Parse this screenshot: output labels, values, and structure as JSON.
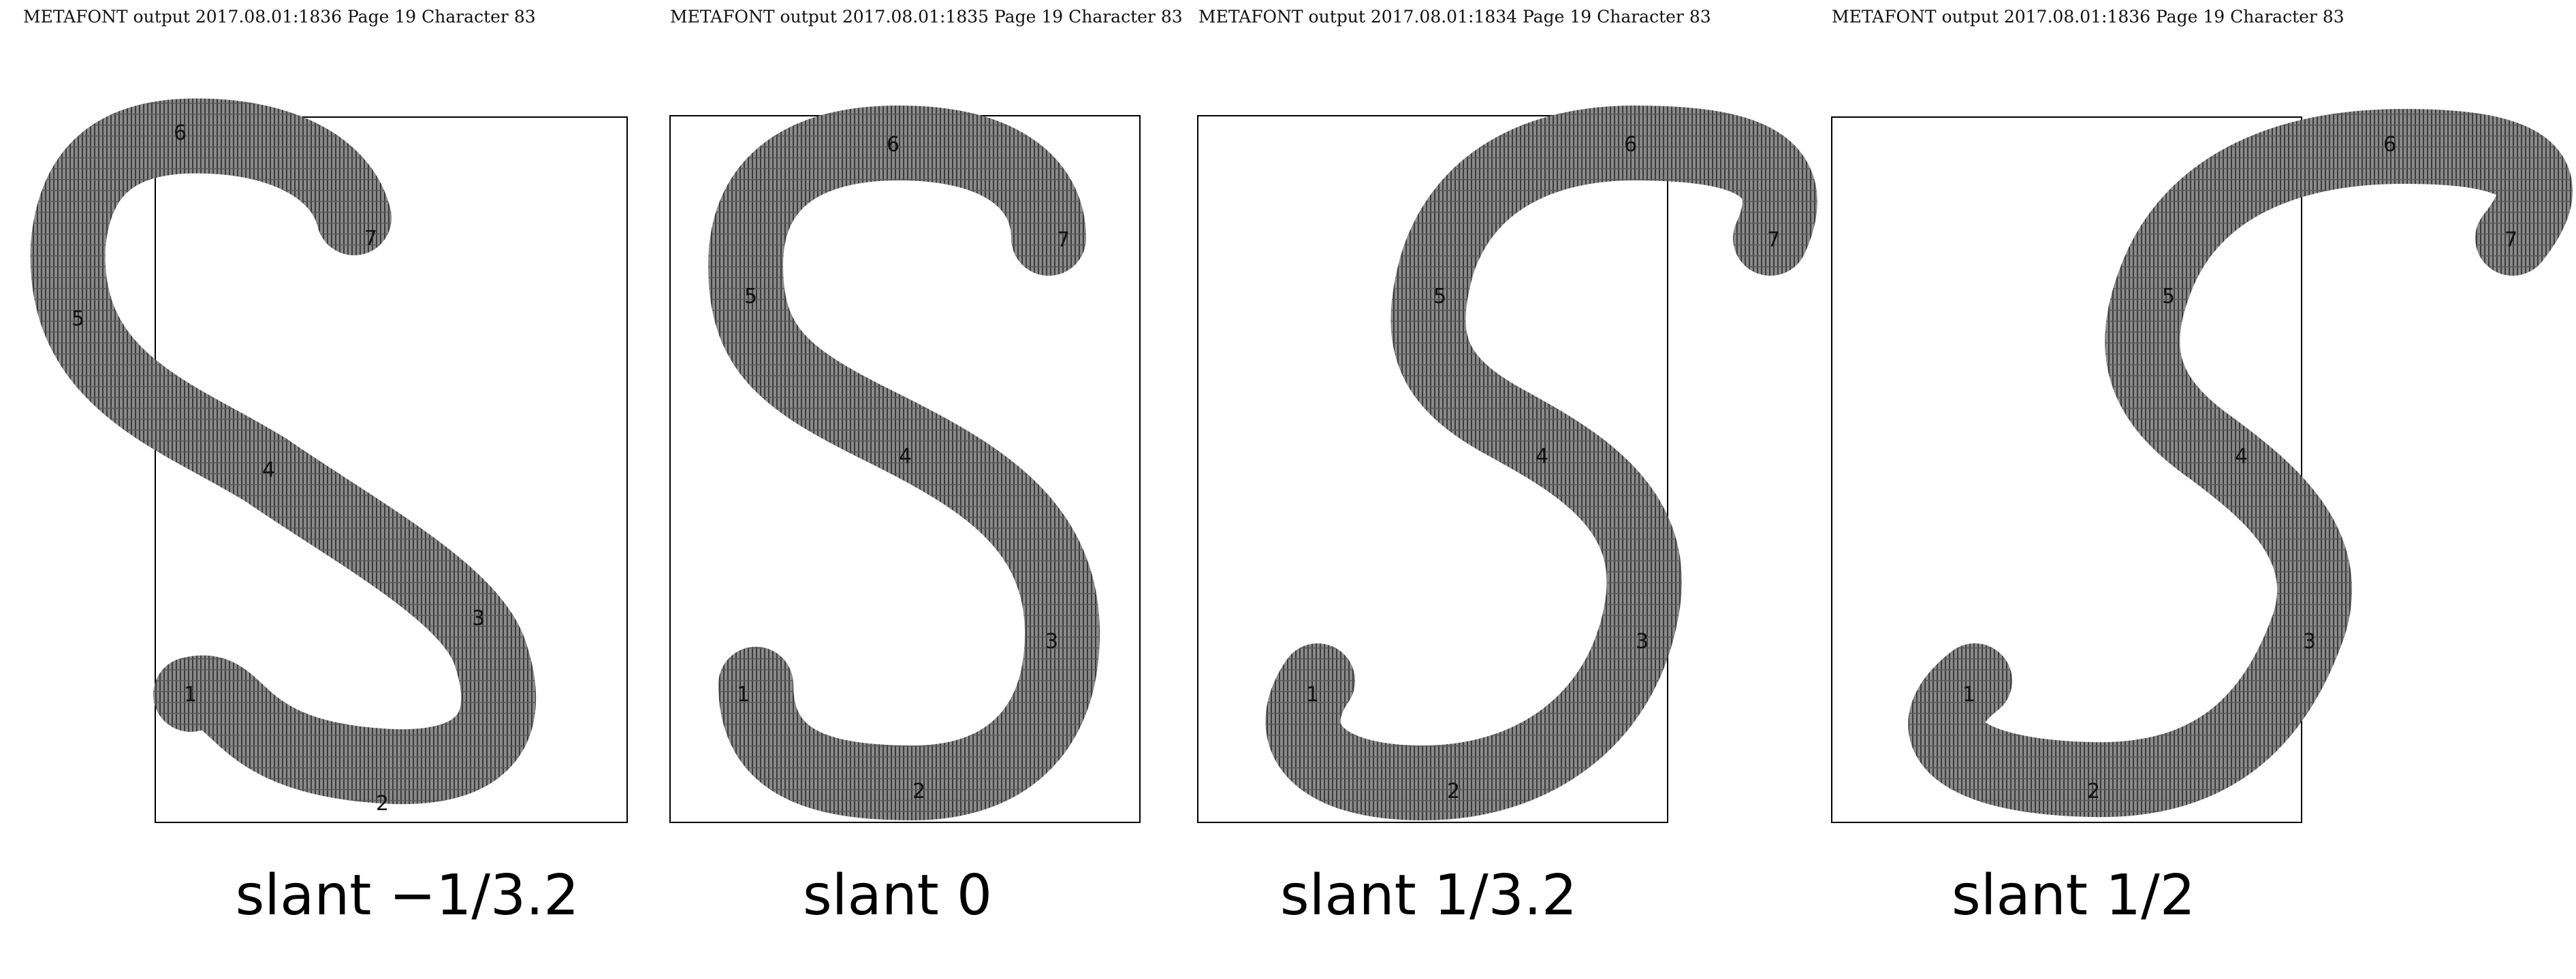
{
  "panels": [
    {
      "header": "METAFONT output 2017.08.01:1836  Page 19  Character 83",
      "caption": "slant −1/3.2",
      "points": [
        "1",
        "2",
        "3",
        "4",
        "5",
        "6",
        "7"
      ]
    },
    {
      "header": "METAFONT output 2017.08.01:1835  Page 19  Character 83",
      "caption": "slant 0",
      "points": [
        "1",
        "2",
        "3",
        "4",
        "5",
        "6",
        "7"
      ]
    },
    {
      "header": "METAFONT output 2017.08.01:1834  Page 19  Character 83",
      "caption": "slant 1/3.2",
      "points": [
        "1",
        "2",
        "3",
        "4",
        "5",
        "6",
        "7"
      ]
    },
    {
      "header": "METAFONT output 2017.08.01:1836  Page 19  Character 83",
      "caption": "slant 1/2",
      "points": [
        "1",
        "2",
        "3",
        "4",
        "5",
        "6",
        "7"
      ]
    }
  ],
  "colors": {
    "glyph_fill": "#7b7b7b",
    "hatch": "#3a3a3a",
    "frame": "#000000"
  }
}
